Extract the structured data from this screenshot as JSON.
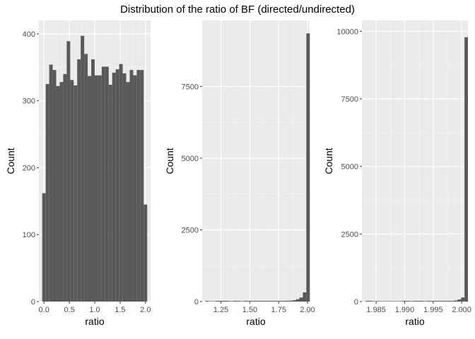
{
  "figure": {
    "title": "Distribution of the ratio of BF (directed/undirected)"
  },
  "colors": {
    "panel_background": "#ebebeb",
    "grid_major": "#ffffff",
    "bar_fill": "#595959",
    "tick_text": "#4d4d4d"
  },
  "chart_data": [
    {
      "type": "bar",
      "title": "",
      "xlabel": "ratio",
      "ylabel": "Count",
      "xlim": [
        -0.1,
        2.1
      ],
      "ylim": [
        0,
        420
      ],
      "x_ticks": [
        0.0,
        0.5,
        1.0,
        1.5,
        2.0
      ],
      "x_tick_labels": [
        "0.0",
        "0.5",
        "1.0",
        "1.5",
        "2.0"
      ],
      "y_ticks": [
        0,
        100,
        200,
        300,
        400
      ],
      "y_tick_labels": [
        "0",
        "100",
        "200",
        "300",
        "400"
      ],
      "bin_width": 0.0689,
      "bin_centers": [
        0.0,
        0.0689,
        0.1379,
        0.2068,
        0.2758,
        0.3447,
        0.4137,
        0.4826,
        0.5516,
        0.6205,
        0.6895,
        0.7584,
        0.8274,
        0.8963,
        0.9653,
        1.0342,
        1.1032,
        1.1721,
        1.2411,
        1.31,
        1.379,
        1.4479,
        1.5168,
        1.5858,
        1.6547,
        1.7237,
        1.7926,
        1.8616,
        1.9305,
        1.9995
      ],
      "values": [
        162,
        325,
        354,
        346,
        322,
        328,
        340,
        389,
        331,
        323,
        362,
        397,
        370,
        337,
        362,
        338,
        338,
        351,
        351,
        324,
        342,
        347,
        355,
        341,
        328,
        346,
        338,
        346,
        346,
        145
      ],
      "grid": true
    },
    {
      "type": "bar",
      "title": "",
      "xlabel": "ratio",
      "ylabel": "Count",
      "xlim": [
        1.087,
        2.018
      ],
      "ylim": [
        0,
        9800
      ],
      "x_ticks": [
        1.25,
        1.5,
        1.75,
        2.0
      ],
      "x_tick_labels": [
        "1.25",
        "1.50",
        "1.75",
        "2.00"
      ],
      "y_ticks": [
        0,
        2500,
        5000,
        7500
      ],
      "y_tick_labels": [
        "0",
        "2500",
        "5000",
        "7500"
      ],
      "bin_width": 0.0302,
      "bin_centers": [
        1.129,
        1.1592,
        1.1894,
        1.2196,
        1.2498,
        1.28,
        1.3102,
        1.3404,
        1.3706,
        1.4008,
        1.431,
        1.4612,
        1.4914,
        1.5216,
        1.5518,
        1.582,
        1.6122,
        1.6424,
        1.6726,
        1.7028,
        1.733,
        1.7632,
        1.7934,
        1.8236,
        1.8538,
        1.884,
        1.9142,
        1.9444,
        1.9746,
        2.0048
      ],
      "values": [
        2,
        0,
        0,
        1,
        1,
        2,
        2,
        0,
        1,
        1,
        0,
        3,
        4,
        4,
        6,
        8,
        10,
        12,
        14,
        16,
        18,
        20,
        24,
        28,
        32,
        45,
        80,
        140,
        320,
        9350
      ],
      "grid": true
    },
    {
      "type": "bar",
      "title": "",
      "xlabel": "ratio",
      "ylabel": "Count",
      "xlim": [
        1.9825,
        2.0011
      ],
      "ylim": [
        0,
        10400
      ],
      "x_ticks": [
        1.985,
        1.99,
        1.995,
        2.0
      ],
      "x_tick_labels": [
        "1.985",
        "1.990",
        "1.995",
        "2.000"
      ],
      "y_ticks": [
        0,
        2500,
        5000,
        7500,
        10000
      ],
      "y_tick_labels": [
        "0",
        "2500",
        "5000",
        "7500",
        "10000"
      ],
      "bin_width": 0.0006,
      "bin_centers": [
        1.9834,
        1.984,
        1.9846,
        1.9852,
        1.9858,
        1.9864,
        1.987,
        1.9876,
        1.9882,
        1.9888,
        1.9894,
        1.99,
        1.9906,
        1.9912,
        1.9918,
        1.9924,
        1.993,
        1.9936,
        1.9942,
        1.9948,
        1.9954,
        1.996,
        1.9966,
        1.9972,
        1.9978,
        1.9984,
        1.999,
        1.9996,
        2.0002,
        2.0008
      ],
      "values": [
        2,
        2,
        0,
        0,
        0,
        0,
        0,
        0,
        0,
        0,
        0,
        2,
        2,
        0,
        2,
        2,
        2,
        0,
        3,
        3,
        4,
        6,
        8,
        10,
        12,
        20,
        40,
        80,
        150,
        9780
      ],
      "grid": true
    }
  ]
}
